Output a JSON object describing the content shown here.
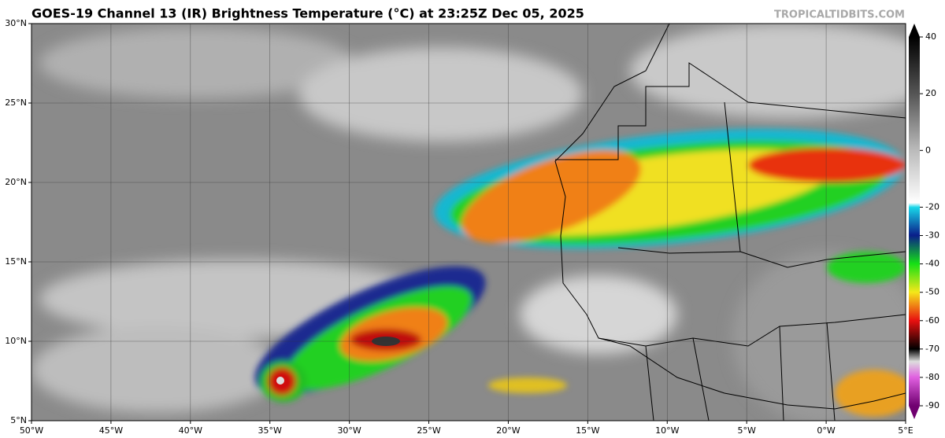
{
  "header": {
    "title": "GOES-19 Channel 13 (IR) Brightness Temperature (°C) at 23:25Z Dec 05, 2025",
    "source": "TROPICALTIDBITS.COM"
  },
  "map": {
    "lat_labels": [
      "30°N",
      "25°N",
      "20°N",
      "15°N",
      "10°N",
      "5°N"
    ],
    "lon_labels": [
      "50°W",
      "45°W",
      "40°W",
      "35°W",
      "30°W",
      "25°W",
      "20°W",
      "15°W",
      "10°W",
      "5°W",
      "0°W",
      "5°E"
    ]
  },
  "colorbar": {
    "ticks": [
      40,
      20,
      0,
      -20,
      -30,
      -40,
      -50,
      -60,
      -70,
      -80,
      -90
    ]
  }
}
